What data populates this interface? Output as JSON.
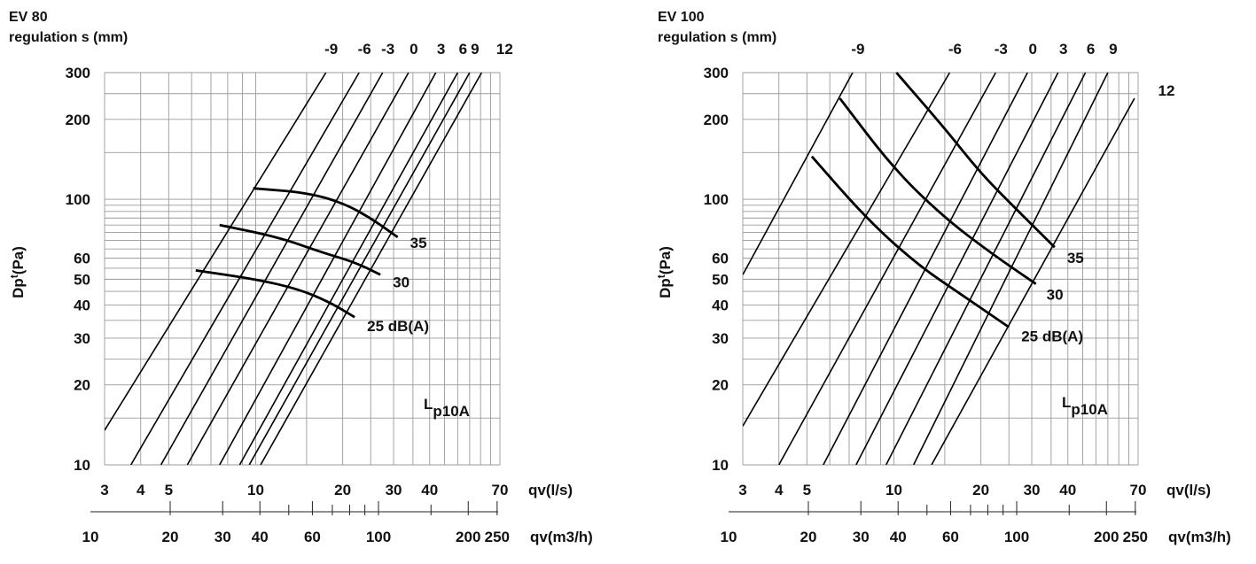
{
  "chart_data": [
    {
      "type": "line",
      "title": "EV 80",
      "subtitle": "regulation s (mm)",
      "ylabel": "Dp",
      "ylabel_sub": "t",
      "ylabel_unit": "(Pa)",
      "xlabel": "qv(l/s)",
      "x2label": "qv(m3/h)",
      "xscale": "log",
      "yscale": "log",
      "xlim": [
        3,
        70
      ],
      "ylim": [
        10,
        300
      ],
      "x2lim": [
        10.8,
        252
      ],
      "grid": true,
      "x_ticks": [
        "3",
        "4",
        "5",
        "10",
        "20",
        "30",
        "40",
        "70"
      ],
      "y_ticks": [
        "300",
        "200",
        "100",
        "60",
        "50",
        "40",
        "30",
        "20",
        "10"
      ],
      "x2_ticks": [
        "10",
        "20",
        "30",
        "40",
        "60",
        "100",
        "200",
        "250"
      ],
      "annotation": {
        "main": "L",
        "sub": "p10A"
      },
      "regulation_lines": [
        {
          "label": "-9",
          "points": [
            [
              3,
              13.5
            ],
            [
              17.5,
              300
            ]
          ]
        },
        {
          "label": "-6",
          "points": [
            [
              3.7,
              10
            ],
            [
              22.8,
              300
            ]
          ]
        },
        {
          "label": "-3",
          "points": [
            [
              4.7,
              10
            ],
            [
              27.5,
              300
            ]
          ]
        },
        {
          "label": "0",
          "points": [
            [
              5.8,
              10
            ],
            [
              33.8,
              300
            ]
          ]
        },
        {
          "label": "3",
          "points": [
            [
              7.5,
              10
            ],
            [
              42,
              300
            ]
          ]
        },
        {
          "label": "6",
          "points": [
            [
              8.8,
              10
            ],
            [
              50,
              300
            ]
          ]
        },
        {
          "label": "9",
          "points": [
            [
              9.5,
              10
            ],
            [
              55,
              300
            ]
          ]
        },
        {
          "label": "12",
          "points": [
            [
              10.4,
              10
            ],
            [
              60.5,
              300
            ]
          ]
        }
      ],
      "noise_curves": [
        {
          "label": "35",
          "points": [
            [
              9.8,
              110
            ],
            [
              15,
              106
            ],
            [
              20,
              97
            ],
            [
              25,
              85
            ],
            [
              31,
              72
            ]
          ]
        },
        {
          "label": "30",
          "points": [
            [
              7.5,
              80
            ],
            [
              12,
              72
            ],
            [
              17,
              63
            ],
            [
              22,
              58
            ],
            [
              27,
              52
            ]
          ]
        },
        {
          "label": "25 dB(A)",
          "points": [
            [
              6.2,
              54
            ],
            [
              10,
              50
            ],
            [
              14,
              46
            ],
            [
              18,
              41
            ],
            [
              22,
              36
            ]
          ]
        }
      ]
    },
    {
      "type": "line",
      "title": "EV 100",
      "subtitle": "regulation s (mm)",
      "ylabel": "Dp",
      "ylabel_sub": "t",
      "ylabel_unit": "(Pa)",
      "xlabel": "qv(l/s)",
      "x2label": "qv(m3/h)",
      "xscale": "log",
      "yscale": "log",
      "xlim": [
        3,
        70
      ],
      "ylim": [
        10,
        300
      ],
      "x2lim": [
        10.8,
        252
      ],
      "grid": true,
      "x_ticks": [
        "3",
        "4",
        "5",
        "10",
        "20",
        "30",
        "40",
        "70"
      ],
      "y_ticks": [
        "300",
        "200",
        "100",
        "60",
        "50",
        "40",
        "30",
        "20",
        "10"
      ],
      "x2_ticks": [
        "10",
        "20",
        "30",
        "40",
        "60",
        "100",
        "200",
        "250"
      ],
      "annotation": {
        "main": "L",
        "sub": "p10A"
      },
      "regulation_lines": [
        {
          "label": "-9",
          "points": [
            [
              3,
              52
            ],
            [
              7.2,
              300
            ]
          ]
        },
        {
          "label": "-6",
          "points": [
            [
              3,
              14
            ],
            [
              15.6,
              300
            ]
          ]
        },
        {
          "label": "-3",
          "points": [
            [
              4,
              10
            ],
            [
              22.5,
              300
            ]
          ]
        },
        {
          "label": "0",
          "points": [
            [
              5.7,
              10
            ],
            [
              29,
              300
            ]
          ]
        },
        {
          "label": "3",
          "points": [
            [
              7.4,
              10
            ],
            [
              37,
              300
            ]
          ]
        },
        {
          "label": "6",
          "points": [
            [
              9.4,
              10
            ],
            [
              46,
              300
            ]
          ]
        },
        {
          "label": "9",
          "points": [
            [
              11.7,
              10
            ],
            [
              55,
              300
            ]
          ]
        },
        {
          "label": "12",
          "points": [
            [
              13.5,
              10
            ],
            [
              68,
              240
            ]
          ]
        }
      ],
      "noise_curves": [
        {
          "label": "35",
          "points": [
            [
              10.2,
              300
            ],
            [
              15,
              185
            ],
            [
              20,
              125
            ],
            [
              27,
              90
            ],
            [
              36,
              66
            ]
          ]
        },
        {
          "label": "30",
          "points": [
            [
              6.5,
              240
            ],
            [
              10,
              130
            ],
            [
              15,
              85
            ],
            [
              22,
              62
            ],
            [
              31,
              48
            ]
          ]
        },
        {
          "label": "25 dB(A)",
          "points": [
            [
              5.2,
              145
            ],
            [
              8,
              85
            ],
            [
              12,
              57
            ],
            [
              17,
              44
            ],
            [
              25,
              33
            ]
          ]
        }
      ]
    }
  ]
}
